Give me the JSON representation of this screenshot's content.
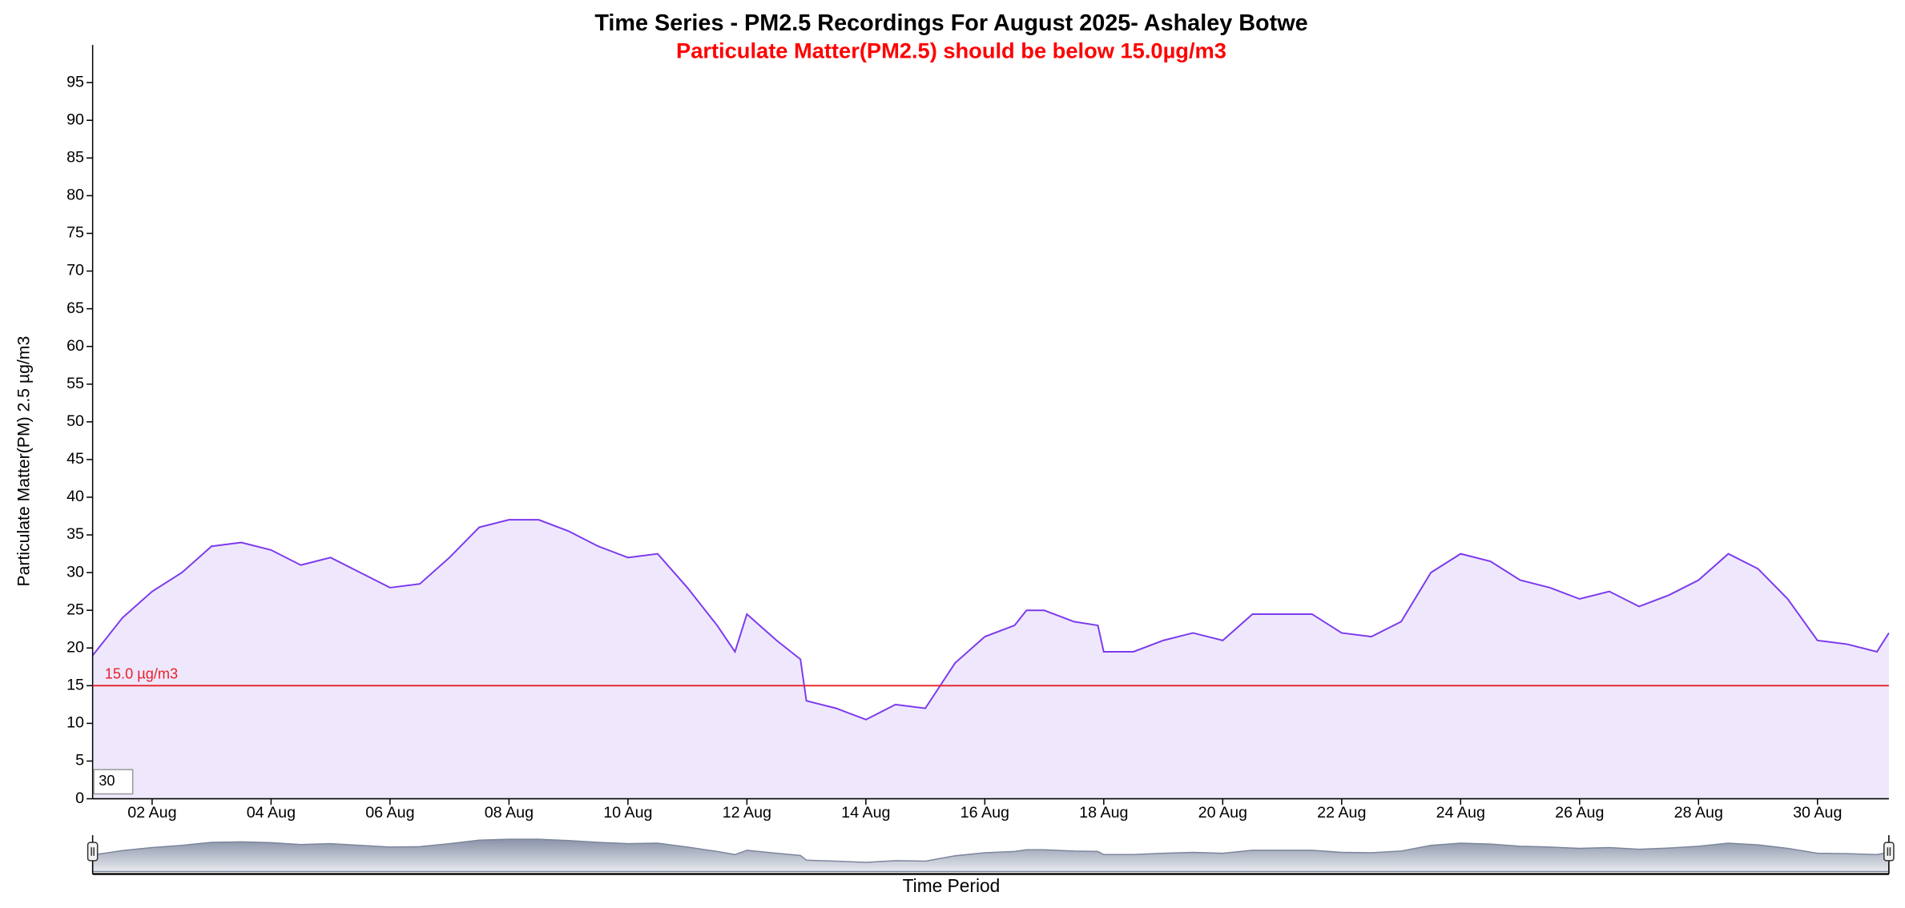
{
  "chart_data": {
    "type": "area",
    "title": "Time Series - PM2.5 Recordings For August 2025- Ashaley Botwe",
    "subtitle": "Particulate Matter(PM2.5) should be below 15.0µg/m3",
    "y_label": "Particulate Matter(PM) 2.5 µg/m3",
    "x_label": "Time Period",
    "threshold": {
      "value": 15,
      "label": "15.0 µg/m3",
      "color": "#e8202a"
    },
    "range_input": "30",
    "series": [
      {
        "name": "PM2.5",
        "color": "#7c3aed",
        "fill": "#efe8fd",
        "x": [
          1.0,
          1.5,
          2.0,
          2.5,
          3.0,
          3.5,
          4.0,
          4.5,
          5.0,
          5.5,
          6.0,
          6.5,
          7.0,
          7.5,
          8.0,
          8.5,
          9.0,
          9.5,
          10.0,
          10.5,
          11.0,
          11.5,
          11.8,
          12.0,
          12.5,
          12.9,
          13.0,
          13.5,
          14.0,
          14.5,
          15.0,
          15.5,
          16.0,
          16.5,
          16.7,
          17.0,
          17.5,
          17.9,
          18.0,
          18.5,
          19.0,
          19.5,
          20.0,
          20.5,
          21.0,
          21.5,
          22.0,
          22.5,
          23.0,
          23.5,
          24.0,
          24.5,
          25.0,
          25.5,
          26.0,
          26.5,
          27.0,
          27.5,
          28.0,
          28.5,
          29.0,
          29.5,
          30.0,
          30.5,
          31.0,
          31.2
        ],
        "values": [
          19,
          24,
          27.5,
          30,
          33.5,
          34,
          33,
          31,
          32,
          30,
          28,
          28.5,
          32,
          36,
          37,
          37,
          35.5,
          33.5,
          32,
          32.5,
          28,
          23,
          19.5,
          24.5,
          21,
          18.5,
          13,
          12,
          10.5,
          12.5,
          12,
          18,
          21.5,
          23,
          25,
          25,
          23.5,
          23,
          19.5,
          19.5,
          21,
          22,
          21,
          24.5,
          24.5,
          24.5,
          22,
          21.5,
          23.5,
          30,
          32.5,
          31.5,
          29,
          28,
          26.5,
          27.5,
          25.5,
          27,
          29,
          32.5,
          30.5,
          26.5,
          21,
          20.5,
          19.5,
          22
        ]
      }
    ],
    "xlim": [
      1,
      31.2
    ],
    "xticks": [
      {
        "value": 2,
        "label": "02 Aug"
      },
      {
        "value": 4,
        "label": "04 Aug"
      },
      {
        "value": 6,
        "label": "06 Aug"
      },
      {
        "value": 8,
        "label": "08 Aug"
      },
      {
        "value": 10,
        "label": "10 Aug"
      },
      {
        "value": 12,
        "label": "12 Aug"
      },
      {
        "value": 14,
        "label": "14 Aug"
      },
      {
        "value": 16,
        "label": "16 Aug"
      },
      {
        "value": 18,
        "label": "18 Aug"
      },
      {
        "value": 20,
        "label": "20 Aug"
      },
      {
        "value": 22,
        "label": "22 Aug"
      },
      {
        "value": 24,
        "label": "24 Aug"
      },
      {
        "value": 26,
        "label": "26 Aug"
      },
      {
        "value": 28,
        "label": "28 Aug"
      },
      {
        "value": 30,
        "label": "30 Aug"
      }
    ],
    "ylim": [
      0,
      100
    ],
    "yticks": [
      0,
      5,
      10,
      15,
      20,
      25,
      30,
      35,
      40,
      45,
      50,
      55,
      60,
      65,
      70,
      75,
      80,
      85,
      90,
      95
    ]
  }
}
